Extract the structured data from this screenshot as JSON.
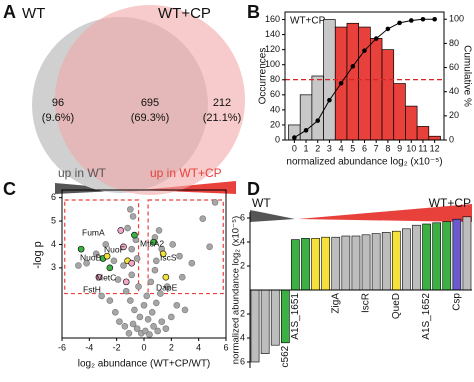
{
  "chart_data": [
    {
      "type": "venn",
      "panel": "A",
      "sets": [
        {
          "name": "WT",
          "color": "#d0d0d0"
        },
        {
          "name": "WT+CP",
          "color": "#f2a9a9"
        }
      ],
      "values": [
        96,
        695,
        212
      ],
      "percents": [
        9.6,
        69.3,
        21.1
      ],
      "percent_labels": [
        "(9.6%)",
        "(69.3%)",
        "(21.1%)"
      ]
    },
    {
      "type": "histogram",
      "panel": "B",
      "label": "WT+CP",
      "bins": [
        -0.5,
        0.5,
        1.5,
        2.5,
        3.5,
        4.5,
        5.5,
        6.5,
        7.5,
        8.5,
        9.5,
        10.5,
        11.5,
        12.5
      ],
      "values": [
        20,
        60,
        85,
        160,
        150,
        155,
        150,
        135,
        120,
        75,
        45,
        18,
        5
      ],
      "colors": [
        "#c8c8c8",
        "#c8c8c8",
        "#c8c8c8",
        "#c8c8c8",
        "#e8413c",
        "#e8413c",
        "#e8413c",
        "#e8413c",
        "#e8413c",
        "#e8413c",
        "#e8413c",
        "#e8413c",
        "#e8413c"
      ],
      "xlabel": "normalized abundance log₂ (x10⁻⁵)",
      "ylabel": "Occurrences",
      "y2label": "Cumulative %",
      "xlim": [
        -0.8,
        12.8
      ],
      "xticks": [
        0,
        1,
        2,
        3,
        4,
        5,
        6,
        7,
        8,
        9,
        10,
        11,
        12
      ],
      "ylim": [
        0,
        170
      ],
      "yticks": [
        0,
        20,
        40,
        60,
        80,
        100,
        120,
        140,
        160
      ],
      "y2lim": [
        0,
        106
      ],
      "y2ticks": [
        0,
        20,
        40,
        60,
        80,
        100
      ],
      "series": [
        {
          "axis": "y2",
          "color": "#000000",
          "x": [
            0,
            1,
            2,
            3,
            4,
            5,
            6,
            7,
            8,
            9,
            10,
            11,
            12
          ],
          "values": [
            2,
            8,
            16,
            33,
            47,
            61,
            74,
            84,
            92,
            97,
            99,
            100,
            100
          ]
        }
      ],
      "hline": {
        "value": 50,
        "axis": "y2",
        "color": "#d62728"
      }
    },
    {
      "type": "scatter",
      "panel": "C",
      "header": [
        "up in WT",
        "up in WT+CP"
      ],
      "header_colors": [
        "#555555",
        "#e8413c"
      ],
      "xlabel": "log₂ abundance (WT+CP/WT)",
      "ylabel": "-log p",
      "xlim": [
        -6,
        6
      ],
      "xticks": [
        -6,
        -4,
        -2,
        0,
        2,
        4,
        6
      ],
      "ylim": [
        0,
        6.2
      ],
      "yticks": [
        3,
        4,
        5,
        6
      ],
      "series": [
        {
          "color": "#a6a6a6",
          "x": [
            -0.2,
            0.1,
            0.4,
            -0.5,
            0.7,
            -0.8,
            1.0,
            -1.1,
            0.3,
            -0.3,
            1.3,
            -1.4,
            0.6,
            -0.7,
            1.6,
            -1.8,
            0.0,
            0.9,
            -1.0,
            2.0,
            -2.1,
            1.2,
            -1.3,
            0.2,
            -0.4,
            2.4,
            -2.5,
            0.5,
            1.7,
            -1.9,
            3.0,
            -3.1,
            2.8,
            -0.9,
            0.8,
            -4.2,
            -3.5,
            -2.8,
            -1.2,
            -0.8,
            -1.0,
            -0.6,
            -2.2,
            -4.8,
            -0.9,
            -1.5,
            -0.5,
            0.9,
            1.3,
            2.1,
            4.3,
            5.2,
            3.5,
            2.6,
            1.1,
            4.8,
            0.8
          ],
          "values": [
            0.2,
            0.3,
            0.15,
            0.4,
            0.5,
            0.6,
            0.3,
            0.2,
            0.8,
            0.9,
            0.7,
            0.5,
            1.1,
            1.2,
            0.4,
            0.7,
            1.4,
            1.5,
            1.6,
            0.9,
            1.1,
            1.9,
            2.0,
            1.8,
            2.2,
            1.4,
            1.6,
            2.4,
            2.2,
            2.5,
            1.2,
            1.8,
            2.6,
            2.7,
            2.9,
            3.2,
            3.6,
            4.0,
            4.7,
            5.2,
            5.5,
            4.2,
            3.3,
            3.1,
            3.8,
            3.1,
            3.4,
            3.3,
            3.8,
            4.0,
            5.1,
            5.8,
            3.2,
            3.5,
            4.6,
            3.9,
            4.3
          ]
        },
        {
          "color": "#3cb043",
          "x": [
            -4.6,
            -2.5,
            -0.7,
            0.7,
            -3.0
          ],
          "values": [
            3.8,
            3.0,
            4.4,
            4.1,
            3.4
          ]
        },
        {
          "color": "#f5e13c",
          "x": [
            -1.2,
            -2.7,
            1.4,
            1.6
          ],
          "values": [
            3.3,
            3.5,
            3.6,
            2.6
          ]
        },
        {
          "color": "#f4a6c8",
          "x": [
            -1.5,
            -0.9,
            -1.3,
            -3.3,
            -1.7
          ],
          "values": [
            3.9,
            3.2,
            2.4,
            2.6,
            4.6
          ]
        }
      ],
      "annotations": [
        "FumA",
        "NuoF",
        "NuoB",
        "MetC",
        "FstH",
        "MtcA2",
        "IscS",
        "DapE"
      ],
      "regions": [
        {
          "x": [
            -5.8,
            -0.4
          ],
          "y": [
            1.9,
            5.9
          ]
        },
        {
          "x": [
            0.3,
            5.8
          ],
          "y": [
            1.9,
            5.9
          ]
        }
      ]
    },
    {
      "type": "bar",
      "panel": "D",
      "header": [
        "WT",
        "WT+CP"
      ],
      "header_colors": [
        "#555555",
        "#e8413c"
      ],
      "ylabel": "normalized abundance log₂ (x10⁻⁵)",
      "categories": [
        null,
        null,
        null,
        "c562",
        "A1S_1651",
        null,
        null,
        null,
        "ZigA",
        null,
        null,
        "IscR",
        null,
        null,
        "QueD",
        null,
        null,
        "A1S_1652",
        null,
        null,
        "Csp",
        null
      ],
      "values": [
        -6.0,
        -5.3,
        -4.6,
        -4.4,
        4.2,
        4.3,
        4.3,
        4.4,
        4.4,
        4.5,
        4.5,
        4.6,
        4.7,
        4.8,
        4.9,
        5.1,
        5.4,
        5.5,
        5.6,
        5.7,
        5.9,
        6.1
      ],
      "colors": [
        "#bdbdbd",
        "#bdbdbd",
        "#bdbdbd",
        "#3cb043",
        "#3cb043",
        "#3cb043",
        "#f5e13c",
        "#f5e13c",
        "#bdbdbd",
        "#bdbdbd",
        "#bdbdbd",
        "#bdbdbd",
        "#bdbdbd",
        "#bdbdbd",
        "#f5e13c",
        "#bdbdbd",
        "#bdbdbd",
        "#3cb043",
        "#3cb043",
        "#3cb043",
        "#6a5acd",
        "#bdbdbd"
      ],
      "ylim": [
        -6.5,
        6.5
      ],
      "yticks": [
        {
          "value": -6,
          "label": "6"
        },
        {
          "value": -4,
          "label": "4"
        },
        {
          "value": -2,
          "label": "2"
        },
        2,
        4,
        6
      ]
    }
  ]
}
